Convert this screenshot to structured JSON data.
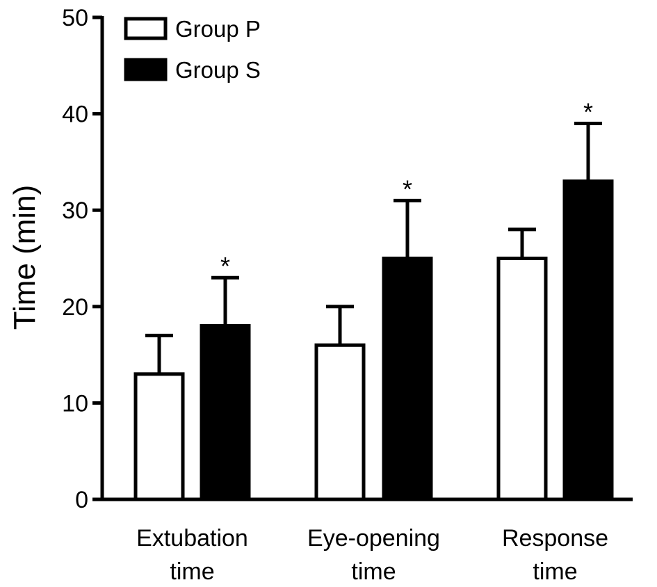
{
  "chart_data": {
    "type": "bar",
    "title": "",
    "xlabel": "",
    "ylabel": "Time (min)",
    "ylim": [
      0,
      50
    ],
    "yticks": [
      0,
      10,
      20,
      30,
      40,
      50
    ],
    "grid": false,
    "legend_position": "top-left",
    "categories": [
      [
        "Extubation",
        "time"
      ],
      [
        "Eye-opening",
        "time"
      ],
      [
        "Response",
        "time"
      ]
    ],
    "series": [
      {
        "name": "Group P",
        "fill": "#ffffff",
        "values": [
          13,
          16,
          25
        ],
        "error": [
          4,
          4,
          3
        ],
        "significance": [
          "",
          "",
          ""
        ]
      },
      {
        "name": "Group S",
        "fill": "#000000",
        "values": [
          18,
          25,
          33
        ],
        "error": [
          5,
          6,
          6
        ],
        "significance": [
          "*",
          "*",
          "*"
        ]
      }
    ]
  }
}
